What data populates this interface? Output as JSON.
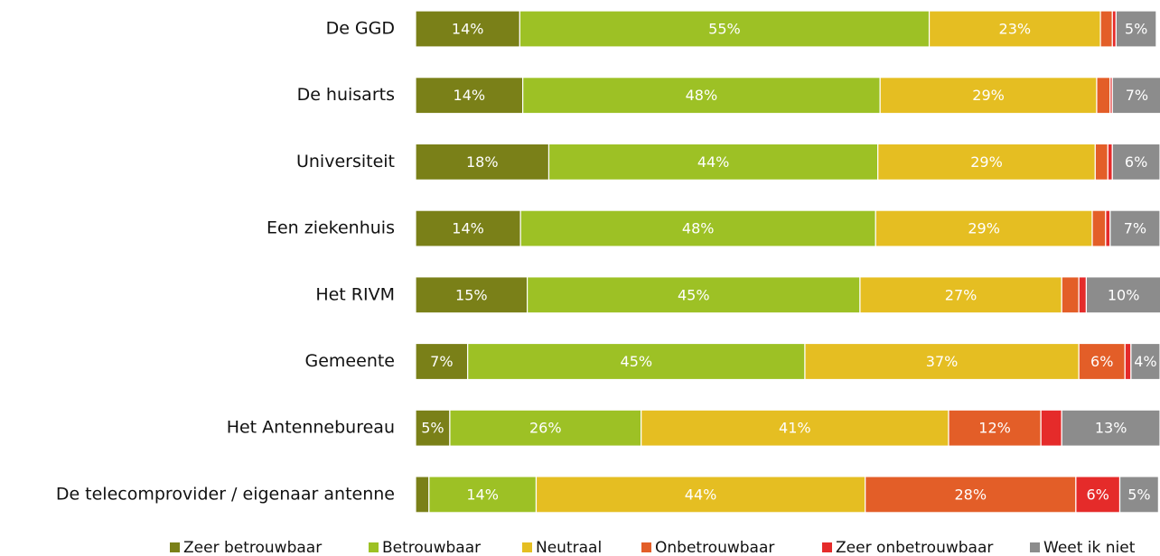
{
  "chart_data": {
    "type": "stacked-bar-horizontal",
    "categories": [
      "De GGD",
      "De huisarts",
      "Universiteit",
      "Een ziekenhuis",
      "Het RIVM",
      "Gemeente",
      "Het Antennebureau",
      "De telecomprovider / eigenaar antenne"
    ],
    "xlim": [
      0,
      100
    ],
    "legend": "bottom",
    "series": [
      {
        "name": "Zeer betrouwbaar",
        "color": "#7a8018",
        "values": [
          14,
          14.4,
          17.9,
          14.1,
          15,
          7,
          4.6,
          1.8
        ],
        "value_labels": [
          "14%",
          "14%",
          "18%",
          "14%",
          "15%",
          "7%",
          "5%",
          null
        ]
      },
      {
        "name": "Betrouwbaar",
        "color": "#9dc125",
        "values": [
          55,
          48,
          44.2,
          47.7,
          44.7,
          45.3,
          25.7,
          14.4
        ],
        "value_labels": [
          "55%",
          "48%",
          "44%",
          "48%",
          "45%",
          "45%",
          "26%",
          "14%"
        ]
      },
      {
        "name": "Neutraal",
        "color": "#e5be22",
        "values": [
          23,
          29.1,
          29.2,
          29.1,
          27.1,
          36.8,
          41.3,
          44.2
        ],
        "value_labels": [
          "23%",
          "29%",
          "29%",
          "29%",
          "27%",
          "37%",
          "41%",
          "44%"
        ]
      },
      {
        "name": "Onbetrouwbaar",
        "color": "#e35e28",
        "values": [
          1.6,
          1.8,
          1.7,
          1.8,
          2.3,
          6.2,
          12.4,
          28.3
        ],
        "value_labels": [
          null,
          null,
          null,
          null,
          null,
          "6%",
          "12%",
          "28%"
        ]
      },
      {
        "name": "Zeer onbetrouwbaar",
        "color": "#e52b2a",
        "values": [
          0.5,
          0.3,
          0.6,
          0.6,
          1,
          0.8,
          2.8,
          5.9
        ],
        "value_labels": [
          null,
          null,
          null,
          null,
          null,
          null,
          null,
          "6%"
        ]
      },
      {
        "name": "Weet ik niet",
        "color": "#8c8c8c",
        "values": [
          5.4,
          6.6,
          6.4,
          6.7,
          10,
          3.9,
          13.2,
          5.2
        ],
        "value_labels": [
          "5%",
          "7%",
          "6%",
          "7%",
          "10%",
          "4%",
          "13%",
          "5%"
        ]
      }
    ]
  }
}
